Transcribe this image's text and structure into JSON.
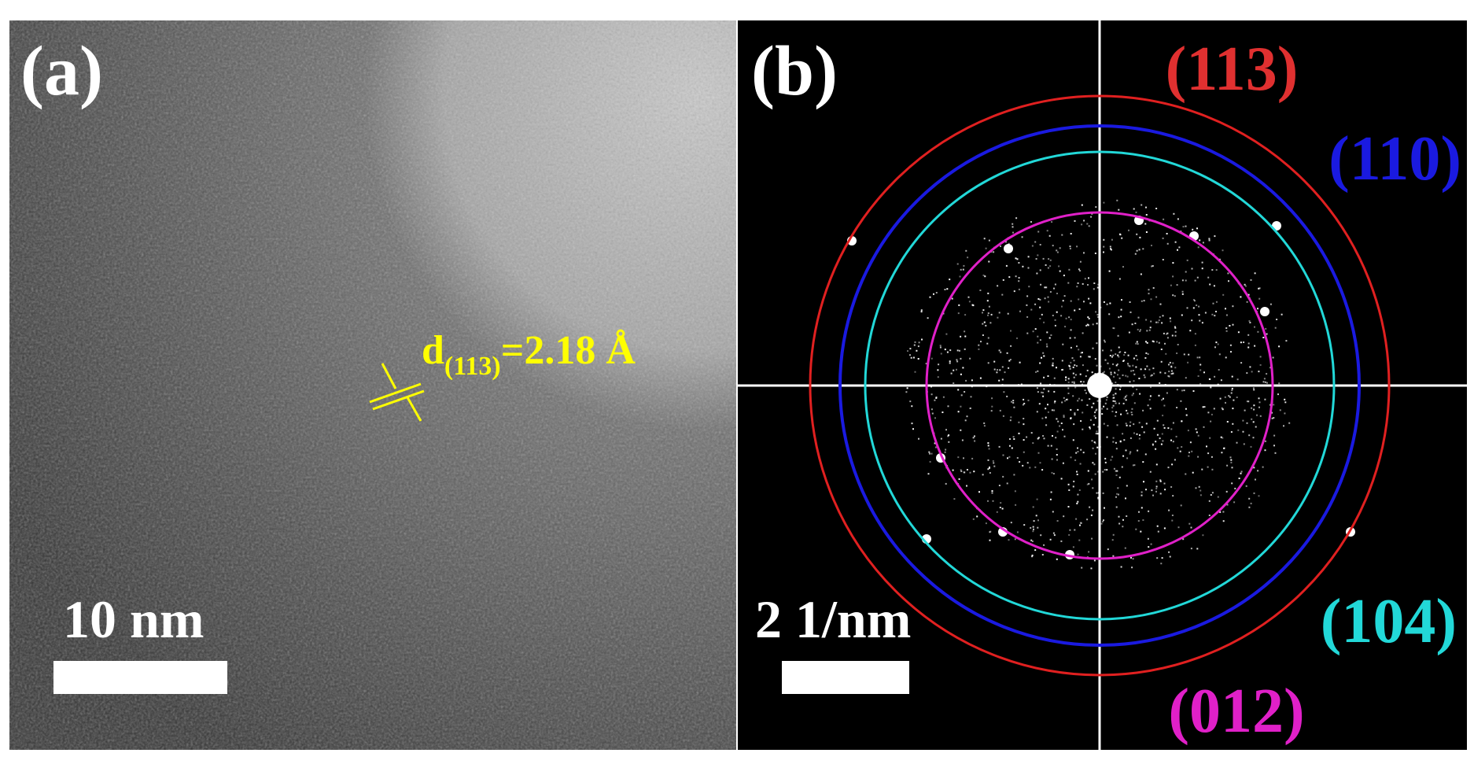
{
  "panel_a": {
    "label": "(a)",
    "scale_bar": "10 nm",
    "annotation": {
      "main": "d",
      "subscript": "(113)",
      "rest": "=2.18 Å"
    }
  },
  "panel_b": {
    "label": "(b)",
    "scale_bar": "2 1/nm",
    "rings": [
      "(113)",
      "(110)",
      "(104)",
      "(012)"
    ]
  }
}
